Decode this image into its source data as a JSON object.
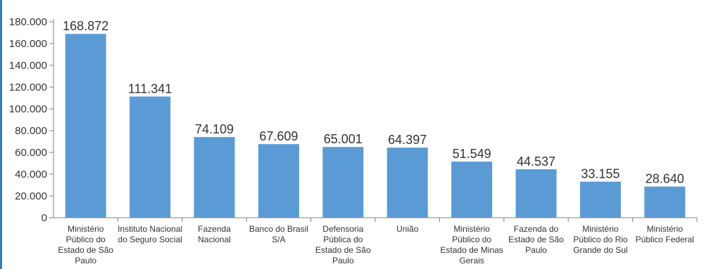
{
  "chart_data": {
    "type": "bar",
    "title": "",
    "xlabel": "",
    "ylabel": "",
    "ylim": [
      0,
      180000
    ],
    "ytick_step": 20000,
    "grid": false,
    "legend": "none",
    "bar_color": "#5b9bd5",
    "axis_color": "#808080",
    "categories": [
      [
        "Ministério",
        "Público do",
        "Estado de São",
        "Paulo"
      ],
      [
        "Instituto Nacional",
        "do Seguro Social"
      ],
      [
        "Fazenda",
        "Nacional"
      ],
      [
        "Banco do Brasil",
        "S/A"
      ],
      [
        "Defensoria",
        "Pública do",
        "Estado de São",
        "Paulo"
      ],
      [
        "União"
      ],
      [
        "Ministério",
        "Público do",
        "Estado de Minas",
        "Gerais"
      ],
      [
        "Fazenda do",
        "Estado de São",
        "Paulo"
      ],
      [
        "Ministério",
        "Público do Rio",
        "Grande do Sul"
      ],
      [
        "Ministério",
        "Público Federal"
      ]
    ],
    "values": [
      168872,
      111341,
      74109,
      67609,
      65001,
      64397,
      51549,
      44537,
      33155,
      28640
    ],
    "value_labels": [
      "168.872",
      "111.341",
      "74.109",
      "67.609",
      "65.001",
      "64.397",
      "51.549",
      "44.537",
      "33.155",
      "28.640"
    ],
    "ytick_labels": [
      "0",
      "20.000",
      "40.000",
      "60.000",
      "80.000",
      "100.000",
      "120.000",
      "140.000",
      "160.000",
      "180.000"
    ]
  }
}
